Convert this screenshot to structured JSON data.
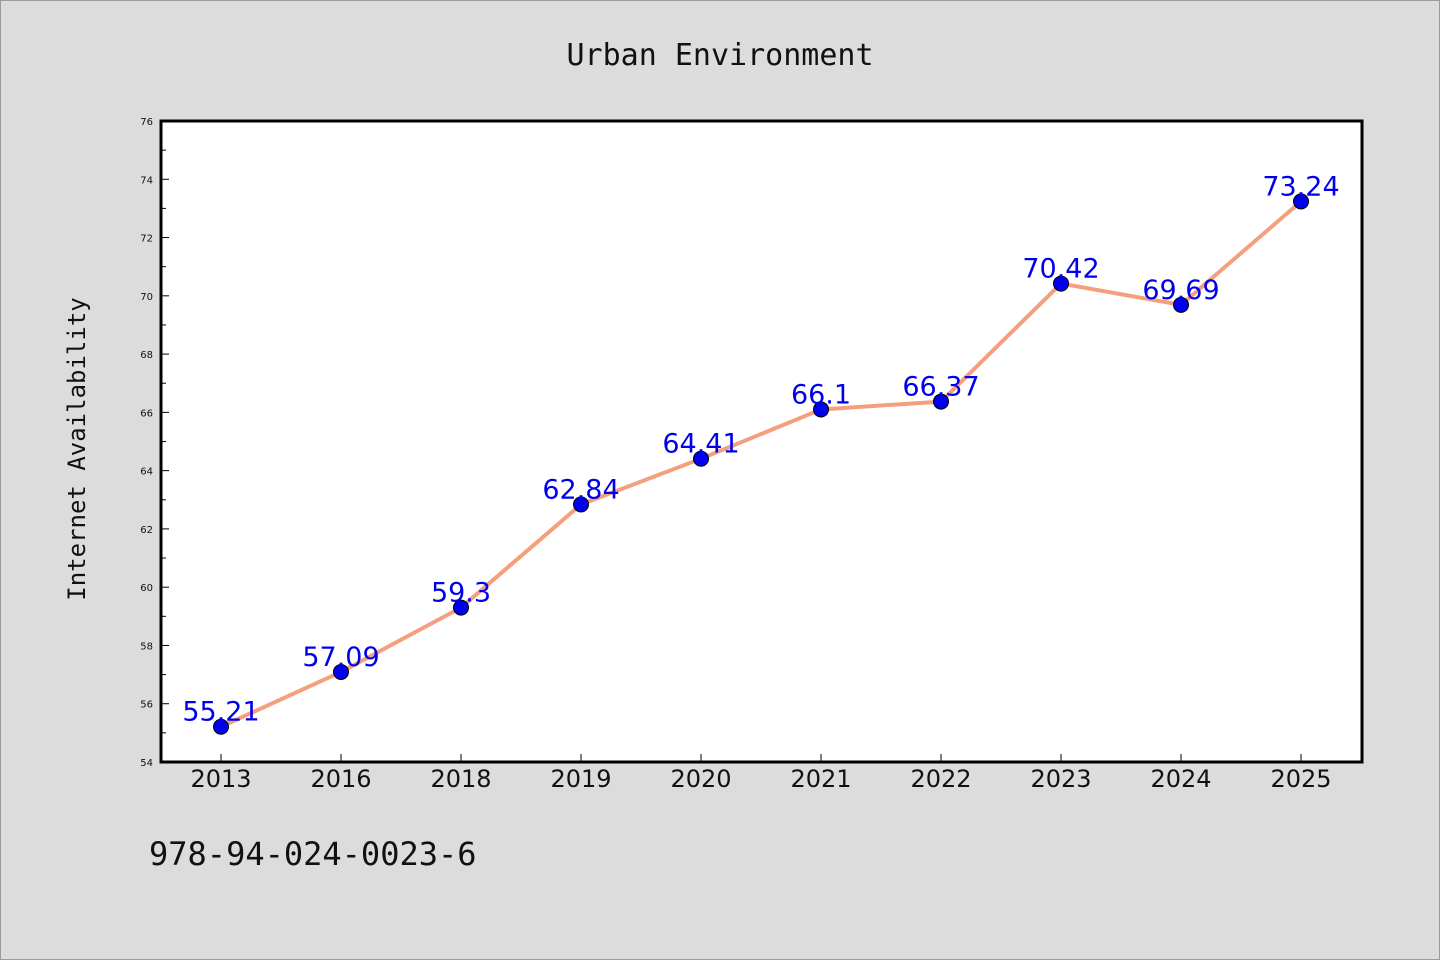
{
  "chart_data": {
    "type": "line",
    "title": "Urban Environment",
    "xlabel": "",
    "ylabel": "Internet Availability",
    "categories": [
      "2013",
      "2016",
      "2018",
      "2019",
      "2020",
      "2021",
      "2022",
      "2023",
      "2024",
      "2025"
    ],
    "series": [
      {
        "values": [
          55.21,
          57.09,
          59.3,
          62.84,
          64.41,
          66.1,
          66.37,
          70.42,
          69.69,
          73.24
        ],
        "labels": [
          "55.21",
          "57.09",
          "59.3",
          "62.84",
          "64.41",
          "66.1",
          "66.37",
          "70.42",
          "69.69",
          "73.24"
        ],
        "line_color": "#f4a07e",
        "marker_color": "#0000ee"
      }
    ],
    "ylim": [
      54,
      76
    ],
    "yticks": [
      "54",
      "56",
      "58",
      "60",
      "62",
      "64",
      "66",
      "68",
      "70",
      "72",
      "74",
      "76"
    ],
    "grid": false,
    "legend": "none"
  },
  "footer": {
    "isbn": "978-94-024-0023-6"
  }
}
